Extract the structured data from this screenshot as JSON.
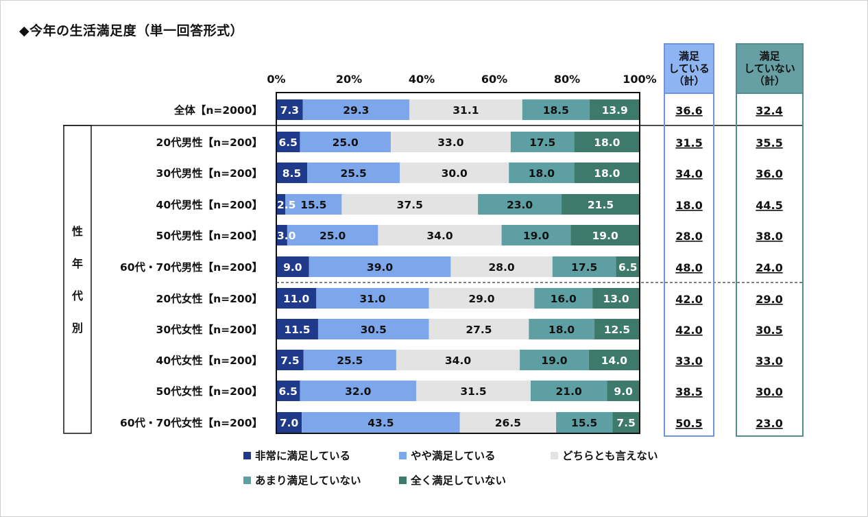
{
  "title": "◆今年の生活満足度（単一回答形式）",
  "colors": {
    "very_satisfied": "#1f3a8a",
    "somewhat_satisfied": "#7ea6ea",
    "neither": "#e3e3e3",
    "not_very_satisfied": "#5d9fa2",
    "not_at_all_satisfied": "#3e7a6b"
  },
  "summary_headers": {
    "satisfied": "満足\nしている\n（計）",
    "dissatisfied": "満足\nしていない\n（計）"
  },
  "group_label": [
    "性",
    "年",
    "代",
    "別"
  ],
  "legend": [
    {
      "label": "非常に満足している",
      "color_key": "very_satisfied"
    },
    {
      "label": "やや満足している",
      "color_key": "somewhat_satisfied"
    },
    {
      "label": "どちらとも言えない",
      "color_key": "neither"
    },
    {
      "label": "あまり満足していない",
      "color_key": "not_very_satisfied"
    },
    {
      "label": "全く満足していない",
      "color_key": "not_at_all_satisfied"
    }
  ],
  "chart_data": {
    "type": "bar",
    "orientation": "horizontal",
    "stacked": true,
    "xlim": [
      0,
      100
    ],
    "x_ticks": [
      "0%",
      "20%",
      "40%",
      "60%",
      "80%",
      "100%"
    ],
    "categories": [
      "全体【n=2000】",
      "20代男性【n=200】",
      "30代男性【n=200】",
      "40代男性【n=200】",
      "50代男性【n=200】",
      "60代・70代男性【n=200】",
      "20代女性【n=200】",
      "30代女性【n=200】",
      "40代女性【n=200】",
      "50代女性【n=200】",
      "60代・70代女性【n=200】"
    ],
    "series": [
      {
        "name": "非常に満足している",
        "values": [
          7.3,
          6.5,
          8.5,
          2.5,
          3.0,
          9.0,
          11.0,
          11.5,
          7.5,
          6.5,
          7.0
        ]
      },
      {
        "name": "やや満足している",
        "values": [
          29.3,
          25.0,
          25.5,
          15.5,
          25.0,
          39.0,
          31.0,
          30.5,
          25.5,
          32.0,
          43.5
        ]
      },
      {
        "name": "どちらとも言えない",
        "values": [
          31.1,
          33.0,
          30.0,
          37.5,
          34.0,
          28.0,
          29.0,
          27.5,
          34.0,
          31.5,
          26.5
        ]
      },
      {
        "name": "あまり満足していない",
        "values": [
          18.5,
          17.5,
          18.0,
          23.0,
          19.0,
          17.5,
          16.0,
          18.0,
          19.0,
          21.0,
          15.5
        ]
      },
      {
        "name": "全く満足していない",
        "values": [
          13.9,
          18.0,
          18.0,
          21.5,
          19.0,
          6.5,
          13.0,
          12.5,
          14.0,
          9.0,
          7.5
        ]
      }
    ],
    "labels": [
      [
        "7.3",
        "29.3",
        "31.1",
        "18.5",
        "13.9"
      ],
      [
        "6.5",
        "25.0",
        "33.0",
        "17.5",
        "18.0"
      ],
      [
        "8.5",
        "25.5",
        "30.0",
        "18.0",
        "18.0"
      ],
      [
        "2.5",
        "15.5",
        "37.5",
        "23.0",
        "21.5"
      ],
      [
        "3.0",
        "25.0",
        "34.0",
        "19.0",
        "19.0"
      ],
      [
        "9.0",
        "39.0",
        "28.0",
        "17.5",
        "6.5"
      ],
      [
        "11.0",
        "31.0",
        "29.0",
        "16.0",
        "13.0"
      ],
      [
        "11.5",
        "30.5",
        "27.5",
        "18.0",
        "12.5"
      ],
      [
        "7.5",
        "25.5",
        "34.0",
        "19.0",
        "14.0"
      ],
      [
        "6.5",
        "32.0",
        "31.5",
        "21.0",
        "9.0"
      ],
      [
        "7.0",
        "43.5",
        "26.5",
        "15.5",
        "7.5"
      ]
    ],
    "satisfied_total": [
      "36.6",
      "31.5",
      "34.0",
      "18.0",
      "28.0",
      "48.0",
      "42.0",
      "42.0",
      "33.0",
      "38.5",
      "50.5"
    ],
    "dissatisfied_total": [
      "32.4",
      "35.5",
      "36.0",
      "44.5",
      "38.0",
      "24.0",
      "29.0",
      "30.5",
      "33.0",
      "30.0",
      "23.0"
    ]
  }
}
